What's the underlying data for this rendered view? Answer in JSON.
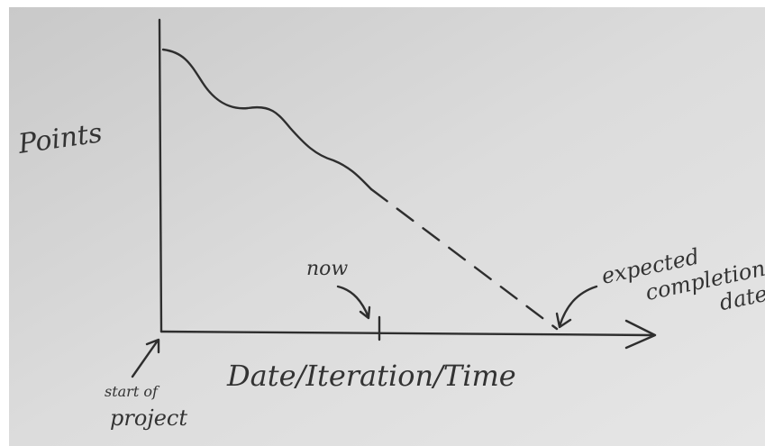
{
  "axes": {
    "y_label": "Points",
    "x_label": "Date/Iteration/Time"
  },
  "annotations": {
    "now": "now",
    "expected_completion": [
      "expected",
      "completion",
      "date"
    ],
    "start": [
      "start of",
      "project"
    ]
  }
}
